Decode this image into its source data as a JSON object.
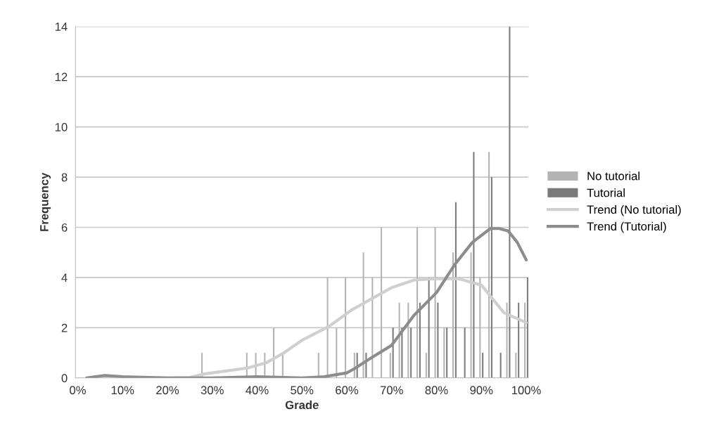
{
  "chart_data": {
    "type": "bar",
    "xlabel": "Grade",
    "ylabel": "Frequency",
    "xlim": [
      -0.5,
      100.5
    ],
    "xticks": [
      {
        "value": 0,
        "label": "0%"
      },
      {
        "value": 10,
        "label": "10%"
      },
      {
        "value": 20,
        "label": "20%"
      },
      {
        "value": 30,
        "label": "30%"
      },
      {
        "value": 40,
        "label": "40%"
      },
      {
        "value": 50,
        "label": "50%"
      },
      {
        "value": 60,
        "label": "60%"
      },
      {
        "value": 70,
        "label": "70%"
      },
      {
        "value": 80,
        "label": "80%"
      },
      {
        "value": 90,
        "label": "90%"
      },
      {
        "value": 100,
        "label": "100%"
      }
    ],
    "ylim": [
      0,
      14
    ],
    "yticks": [
      0,
      2,
      4,
      6,
      8,
      10,
      12,
      14
    ],
    "grid": "y",
    "legend": "right",
    "series": [
      {
        "name": "No tutorial",
        "color": "#b3b3b3",
        "x": [
          28,
          38,
          40,
          42,
          44,
          46,
          54,
          56,
          58,
          60,
          62,
          64,
          66,
          68,
          70,
          72,
          74,
          76,
          78,
          80,
          82,
          84,
          88,
          90,
          92,
          96,
          98,
          100
        ],
        "values": [
          1,
          1,
          1,
          1,
          2,
          1,
          1,
          4,
          2,
          4,
          1,
          5,
          4,
          6,
          1,
          3,
          3,
          6,
          1,
          6,
          2,
          5,
          5,
          4,
          9,
          3,
          1,
          3
        ]
      },
      {
        "name": "Tutorial",
        "color": "#7a7a7a",
        "x": [
          62,
          64,
          70,
          72,
          74,
          76,
          78,
          80,
          82,
          84,
          86,
          88,
          90,
          92,
          94,
          96,
          98,
          100
        ],
        "values": [
          1,
          1,
          2,
          2,
          2,
          3,
          4,
          3,
          2,
          7,
          2,
          9,
          1,
          8,
          1,
          14,
          3,
          4
        ]
      },
      {
        "name": "Trend (No tutorial)",
        "type": "line",
        "color": "#cfcfcf",
        "x": [
          2,
          5,
          10,
          20,
          25,
          28,
          32,
          38,
          42,
          46,
          50,
          56,
          61,
          64,
          70,
          75,
          80,
          85,
          90,
          95,
          100
        ],
        "values": [
          0,
          0.05,
          0.02,
          0,
          0.02,
          0.15,
          0.25,
          0.4,
          0.6,
          1.0,
          1.5,
          2.05,
          2.7,
          3.0,
          3.6,
          3.9,
          3.95,
          3.95,
          3.7,
          2.6,
          2.2
        ]
      },
      {
        "name": "Trend (Tutorial)",
        "type": "line",
        "color": "#8c8c8c",
        "x": [
          2,
          6,
          10,
          20,
          30,
          40,
          50,
          55,
          60,
          62,
          65,
          70,
          75,
          80,
          84,
          88,
          92,
          94,
          96,
          98,
          100
        ],
        "values": [
          0,
          0.1,
          0.05,
          0,
          0,
          0.05,
          0,
          0.05,
          0.2,
          0.4,
          0.75,
          1.3,
          2.5,
          3.4,
          4.5,
          5.4,
          5.95,
          5.95,
          5.85,
          5.4,
          4.7
        ]
      }
    ]
  }
}
